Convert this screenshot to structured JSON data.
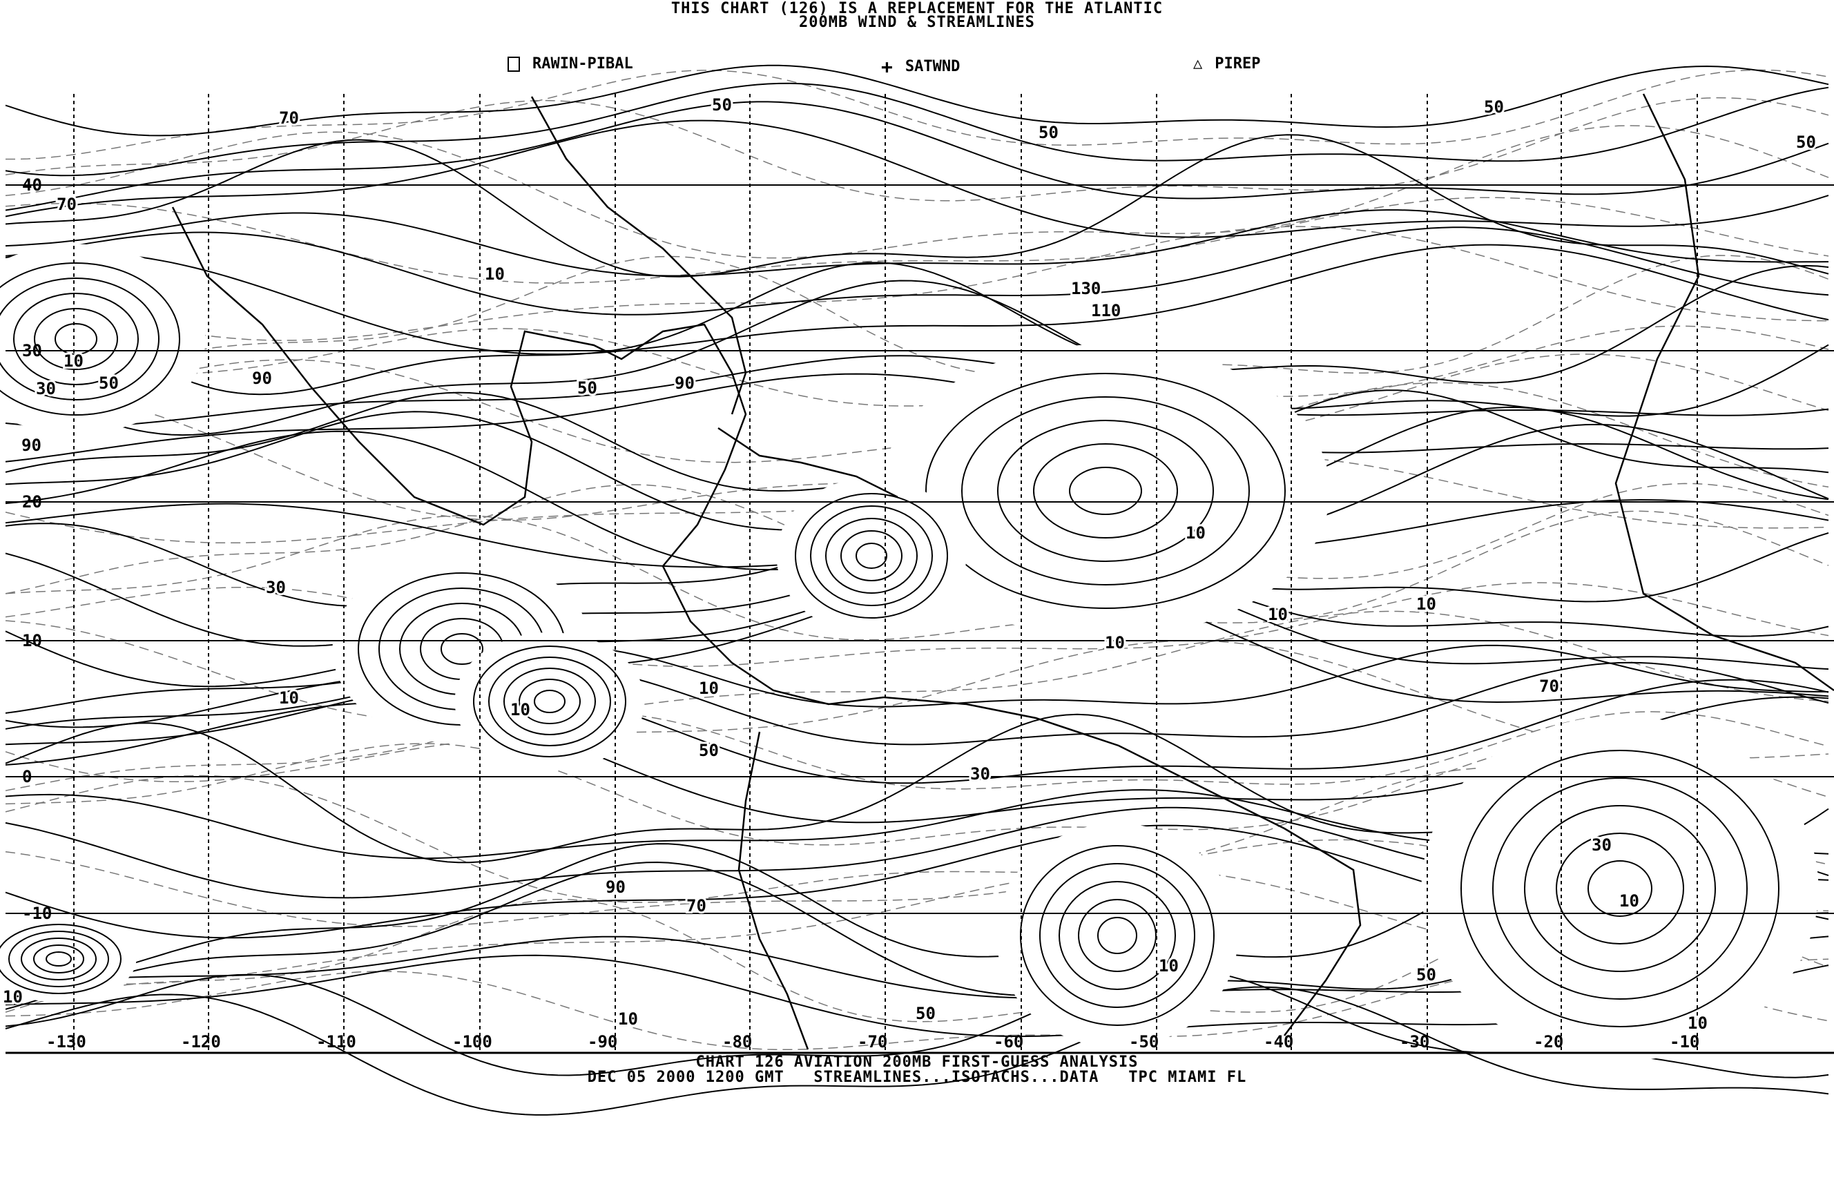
{
  "header": {
    "title_line1": "THIS CHART (126) IS A REPLACEMENT FOR THE ATLANTIC",
    "title_line2": "200MB WIND & STREAMLINES"
  },
  "legend": [
    {
      "icon": "square-icon",
      "label": "RAWIN-PIBAL"
    },
    {
      "icon": "plus-icon",
      "label": "SATWND"
    },
    {
      "icon": "triangle-icon",
      "label": "PIREP"
    }
  ],
  "map": {
    "latitude_labels": [
      "40",
      "30",
      "20",
      "10",
      "0",
      "-10"
    ],
    "longitude_labels": [
      "-130",
      "-120",
      "-110",
      "-100",
      "-90",
      "-80",
      "-70",
      "-60",
      "-50",
      "-40",
      "-30",
      "-20",
      "-10"
    ],
    "isotach_labels": [
      "70",
      "70",
      "10",
      "30",
      "50",
      "90",
      "90",
      "10",
      "50",
      "50",
      "50",
      "50",
      "130",
      "110",
      "50",
      "90",
      "10",
      "10",
      "10",
      "10",
      "30",
      "10",
      "10",
      "10",
      "50",
      "30",
      "70",
      "30",
      "10",
      "90",
      "70",
      "10",
      "50",
      "50",
      "10",
      "10",
      "10"
    ],
    "line_color": "#000000",
    "isotach_color": "#777777"
  },
  "footer": {
    "line1": "CHART 126 AVIATION 200MB FIRST-GUESS ANALYSIS",
    "line2": "DEC 05 2000 1200 GMT   STREAMLINES...ISOTACHS...DATA   TPC MIAMI FL"
  }
}
